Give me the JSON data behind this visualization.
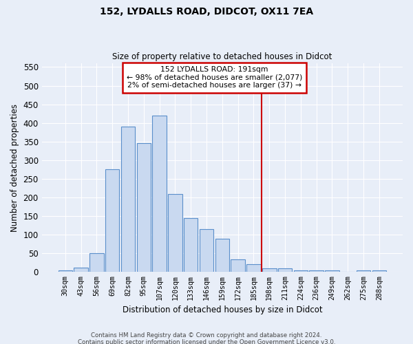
{
  "title": "152, LYDALLS ROAD, DIDCOT, OX11 7EA",
  "subtitle": "Size of property relative to detached houses in Didcot",
  "xlabel": "Distribution of detached houses by size in Didcot",
  "ylabel": "Number of detached properties",
  "bin_labels": [
    "30sqm",
    "43sqm",
    "56sqm",
    "69sqm",
    "82sqm",
    "95sqm",
    "107sqm",
    "120sqm",
    "133sqm",
    "146sqm",
    "159sqm",
    "172sqm",
    "185sqm",
    "198sqm",
    "211sqm",
    "224sqm",
    "236sqm",
    "249sqm",
    "262sqm",
    "275sqm",
    "288sqm"
  ],
  "bar_values": [
    5,
    12,
    50,
    275,
    390,
    345,
    420,
    210,
    145,
    115,
    90,
    33,
    20,
    10,
    10,
    5,
    5,
    5,
    0,
    5,
    5
  ],
  "bar_color": "#c9d9f0",
  "bar_edge_color": "#5a8fcb",
  "background_color": "#e8eef8",
  "grid_color": "#ffffff",
  "red_line_x": 12.5,
  "annotation_line1": "152 LYDALLS ROAD: 191sqm",
  "annotation_line2": "← 98% of detached houses are smaller (2,077)",
  "annotation_line3": "2% of semi-detached houses are larger (37) →",
  "annotation_box_color": "#ffffff",
  "annotation_box_edge": "#cc0000",
  "footer_line1": "Contains HM Land Registry data © Crown copyright and database right 2024.",
  "footer_line2": "Contains public sector information licensed under the Open Government Licence v3.0.",
  "ylim": [
    0,
    560
  ],
  "yticks": [
    0,
    50,
    100,
    150,
    200,
    250,
    300,
    350,
    400,
    450,
    500,
    550
  ]
}
